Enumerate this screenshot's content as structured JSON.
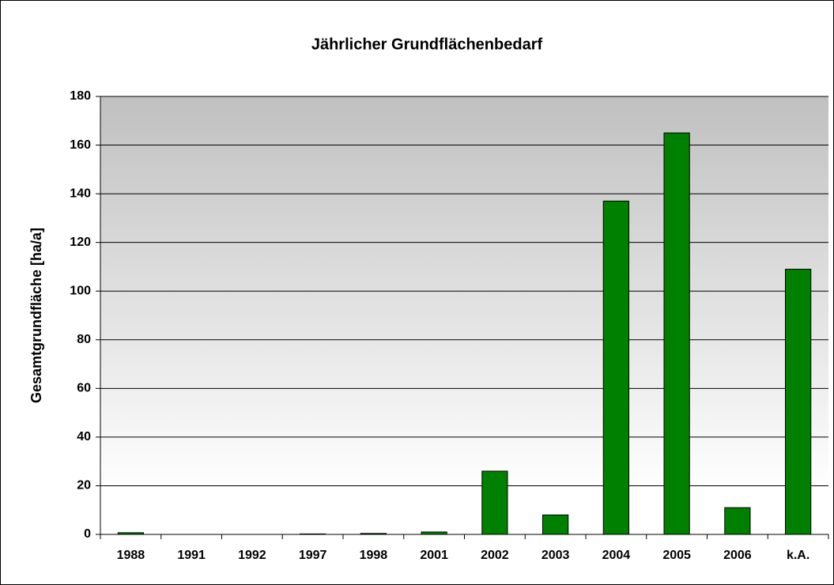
{
  "chart_data": {
    "type": "bar",
    "title": "Jährlicher Grundflächenbedarf",
    "y_label": "Gesamtgrundfläche [ha/a]",
    "categories": [
      "1988",
      "1991",
      "1992",
      "1997",
      "1998",
      "2001",
      "2002",
      "2003",
      "2004",
      "2005",
      "2006",
      "k.A."
    ],
    "values": [
      0.7,
      0,
      0,
      0.2,
      0.4,
      1,
      26,
      8,
      137,
      165,
      11,
      109
    ],
    "color": "#008000",
    "ylim": [
      0,
      180
    ],
    "yticks": [
      0,
      20,
      40,
      60,
      80,
      100,
      120,
      140,
      160,
      180
    ],
    "grid": true
  }
}
